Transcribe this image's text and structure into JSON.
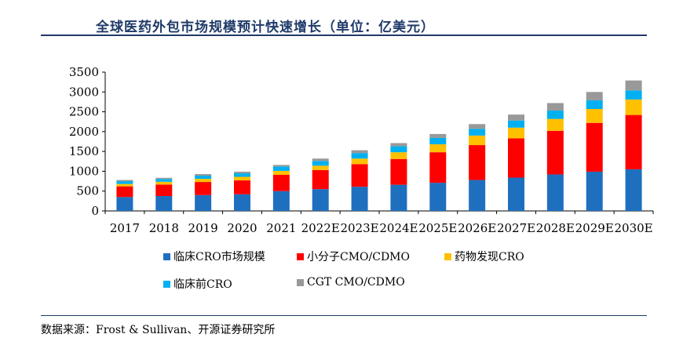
{
  "title": "全球医药外包市场规模预计快速增长（单位：亿美元）",
  "source": "数据来源：Frost & Sullivan、开源证券研究所",
  "chart_data": {
    "type": "bar",
    "stacked": true,
    "categories": [
      "2017",
      "2018",
      "2019",
      "2020",
      "2021",
      "2022E",
      "2023E",
      "2024E",
      "2025E",
      "2026E",
      "2027E",
      "2028E",
      "2029E",
      "2030E"
    ],
    "ylim": [
      0,
      3500
    ],
    "yticks": [
      0,
      500,
      1000,
      1500,
      2000,
      2500,
      3000,
      3500
    ],
    "legend_position": "bottom",
    "series": [
      {
        "name": "临床CRO市场规模",
        "color": "#1f6fbf",
        "values": [
          350,
          375,
          400,
          420,
          500,
          550,
          610,
          660,
          710,
          780,
          840,
          920,
          990,
          1050
        ]
      },
      {
        "name": "小分子CMO/CDMO",
        "color": "#ff0000",
        "values": [
          270,
          290,
          330,
          350,
          410,
          480,
          570,
          650,
          770,
          880,
          990,
          1100,
          1230,
          1370
        ]
      },
      {
        "name": "药物发现CRO",
        "color": "#ffc000",
        "values": [
          60,
          70,
          80,
          90,
          100,
          110,
          140,
          170,
          200,
          240,
          270,
          300,
          350,
          390
        ]
      },
      {
        "name": "临床前CRO",
        "color": "#00b0f0",
        "values": [
          70,
          70,
          80,
          90,
          110,
          120,
          140,
          150,
          160,
          170,
          180,
          210,
          220,
          230
        ]
      },
      {
        "name": "CGT CMO/CDMO",
        "color": "#999999",
        "values": [
          30,
          30,
          40,
          40,
          40,
          60,
          70,
          80,
          100,
          120,
          150,
          190,
          210,
          250
        ]
      }
    ]
  }
}
